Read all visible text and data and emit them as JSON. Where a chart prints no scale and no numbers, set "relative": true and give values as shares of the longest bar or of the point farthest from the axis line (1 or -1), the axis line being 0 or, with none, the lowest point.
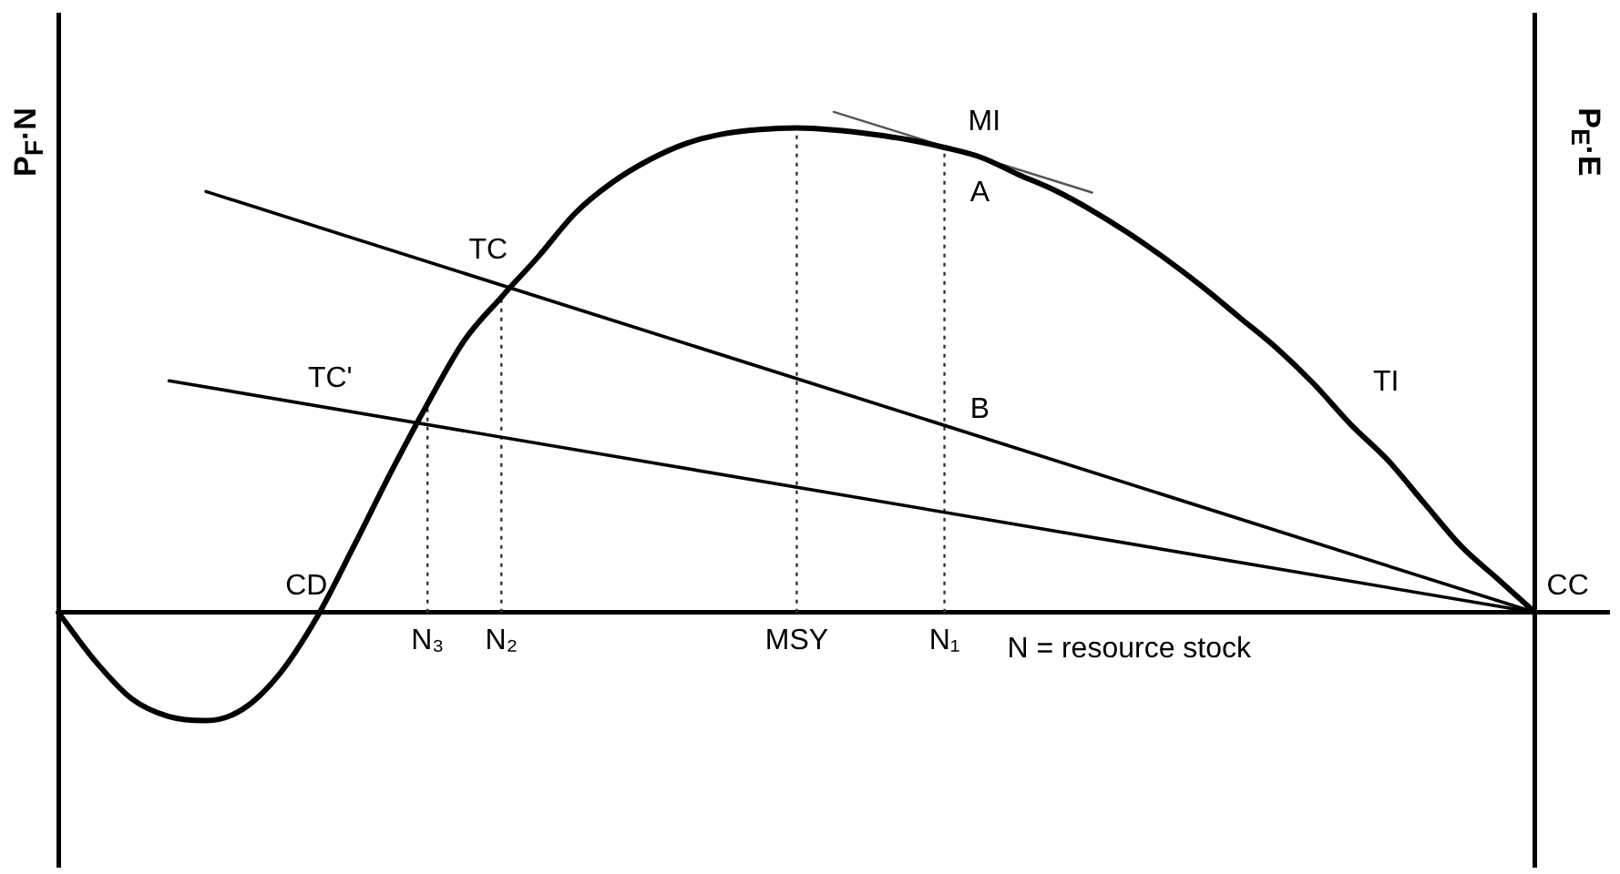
{
  "chart_data": {
    "type": "line",
    "relative": true,
    "xlabel": "N = resource stock",
    "ylabel": "P$_{F}$·N",
    "y2label": "P$_{E}$·E",
    "categories": [
      null,
      null,
      null,
      null,
      null,
      null,
      null,
      null,
      null,
      null,
      "N₃",
      null,
      "N₂",
      null,
      null,
      null,
      null,
      null,
      null,
      null,
      "MSY",
      null,
      null,
      null,
      "N₁",
      null,
      null,
      null,
      null,
      null,
      null,
      null,
      null,
      null,
      null,
      null,
      null,
      null,
      null,
      null,
      null,
      null,
      null
    ],
    "grid": false,
    "legend": false,
    "marker": "none",
    "line_style": "solid",
    "series": [
      {
        "color": "#000000",
        "values": [
          0,
          -0.097,
          -0.173,
          -0.208,
          -0.216,
          -0.193,
          -0.122,
          -0.01,
          0.132,
          0.279,
          0.417,
          0.544,
          0.63,
          0.711,
          0.798,
          0.859,
          0.904,
          0.937,
          0.956,
          0.965,
          0.968,
          0.964,
          0.956,
          0.945,
          0.929,
          0.909,
          0.875,
          0.843,
          0.803,
          0.757,
          0.706,
          0.65,
          0.589,
          0.528,
          0.457,
          0.376,
          0.305,
          0.218,
          0.132,
          0.066,
          0,
          null,
          null
        ]
      },
      {
        "color": "#000000",
        "values": [
          null,
          null,
          null,
          null,
          0.841,
          null,
          null,
          null,
          null,
          null,
          null,
          null,
          null,
          null,
          null,
          null,
          null,
          null,
          null,
          null,
          null,
          null,
          null,
          null,
          null,
          null,
          null,
          null,
          null,
          null,
          null,
          null,
          null,
          null,
          null,
          null,
          null,
          null,
          null,
          null,
          0,
          null,
          null
        ]
      },
      {
        "color": "#000000",
        "values": [
          null,
          null,
          null,
          0.463,
          null,
          null,
          null,
          null,
          null,
          null,
          null,
          null,
          null,
          null,
          null,
          null,
          null,
          null,
          null,
          null,
          null,
          null,
          null,
          null,
          null,
          null,
          null,
          null,
          null,
          null,
          null,
          null,
          null,
          null,
          null,
          null,
          null,
          null,
          null,
          null,
          0,
          null,
          null
        ]
      },
      {
        "color": "#555555",
        "values": [
          null,
          null,
          null,
          null,
          null,
          null,
          null,
          null,
          null,
          null,
          null,
          null,
          null,
          null,
          null,
          null,
          null,
          null,
          null,
          null,
          null,
          1,
          null,
          null,
          null,
          null,
          null,
          null,
          0.839,
          null,
          null,
          null,
          null,
          null,
          null,
          null,
          null,
          null,
          null,
          null,
          null,
          null,
          null
        ]
      }
    ],
    "ref_lines": [
      {
        "axis": "x",
        "value": "N₃",
        "color": "#333333",
        "line_style": "dotted"
      },
      {
        "axis": "x",
        "value": "N₂",
        "color": "#333333",
        "line_style": "dotted"
      },
      {
        "axis": "x",
        "value": "MSY",
        "color": "#333333",
        "line_style": "dotted"
      },
      {
        "axis": "x",
        "value": "N₁",
        "color": "#333333",
        "line_style": "dotted"
      }
    ],
    "annotations": [
      "TC",
      "TC'",
      "CD",
      "MI",
      "A",
      "B",
      "TI",
      "CC"
    ]
  }
}
